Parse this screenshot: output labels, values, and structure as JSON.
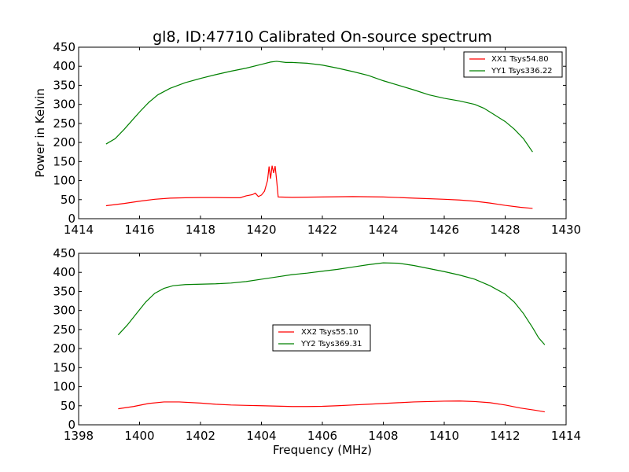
{
  "chart_data": [
    {
      "type": "line",
      "title": "gl8, ID:47710 Calibrated On-source spectrum",
      "xlabel": "",
      "ylabel": "Power in Kelvin",
      "xlim": [
        1414,
        1430
      ],
      "ylim": [
        0,
        450
      ],
      "xticks": [
        "1414",
        "1416",
        "1418",
        "1420",
        "1422",
        "1424",
        "1426",
        "1428",
        "1430"
      ],
      "yticks": [
        "0",
        "50",
        "100",
        "150",
        "200",
        "250",
        "300",
        "350",
        "400",
        "450"
      ],
      "legend_position": "top-right",
      "series": [
        {
          "name": "XX1 Tsys54.80",
          "color": "#ff0000",
          "points": [
            [
              1414.9,
              34
            ],
            [
              1415.5,
              40
            ],
            [
              1416,
              46
            ],
            [
              1416.5,
              51
            ],
            [
              1417,
              54
            ],
            [
              1417.5,
              55
            ],
            [
              1418,
              55.5
            ],
            [
              1418.5,
              55.5
            ],
            [
              1419,
              55
            ],
            [
              1419.3,
              55
            ],
            [
              1419.5,
              60
            ],
            [
              1419.7,
              63
            ],
            [
              1419.8,
              67
            ],
            [
              1419.9,
              58
            ],
            [
              1420,
              62
            ],
            [
              1420.1,
              72
            ],
            [
              1420.2,
              100
            ],
            [
              1420.25,
              137
            ],
            [
              1420.3,
              105
            ],
            [
              1420.35,
              139
            ],
            [
              1420.4,
              120
            ],
            [
              1420.45,
              138
            ],
            [
              1420.5,
              100
            ],
            [
              1420.55,
              57
            ],
            [
              1421,
              56
            ],
            [
              1422,
              57
            ],
            [
              1423,
              58
            ],
            [
              1424,
              57
            ],
            [
              1425,
              54
            ],
            [
              1426,
              51
            ],
            [
              1426.5,
              49
            ],
            [
              1427,
              46
            ],
            [
              1427.5,
              41
            ],
            [
              1428,
              35
            ],
            [
              1428.5,
              30
            ],
            [
              1428.9,
              27
            ]
          ]
        },
        {
          "name": "YY1 Tsys336.22",
          "color": "#008000",
          "points": [
            [
              1414.9,
              196
            ],
            [
              1415.2,
              210
            ],
            [
              1415.5,
              235
            ],
            [
              1415.8,
              262
            ],
            [
              1416,
              280
            ],
            [
              1416.3,
              305
            ],
            [
              1416.6,
              325
            ],
            [
              1417,
              342
            ],
            [
              1417.5,
              357
            ],
            [
              1418,
              368
            ],
            [
              1418.5,
              378
            ],
            [
              1419,
              387
            ],
            [
              1419.5,
              395
            ],
            [
              1420,
              405
            ],
            [
              1420.3,
              411
            ],
            [
              1420.5,
              413
            ],
            [
              1420.8,
              410
            ],
            [
              1421,
              410
            ],
            [
              1421.5,
              408
            ],
            [
              1422,
              403
            ],
            [
              1422.5,
              395
            ],
            [
              1423,
              386
            ],
            [
              1423.5,
              376
            ],
            [
              1424,
              362
            ],
            [
              1424.5,
              350
            ],
            [
              1425,
              338
            ],
            [
              1425.5,
              325
            ],
            [
              1426,
              316
            ],
            [
              1426.5,
              309
            ],
            [
              1427,
              300
            ],
            [
              1427.3,
              290
            ],
            [
              1427.6,
              275
            ],
            [
              1428,
              255
            ],
            [
              1428.3,
              235
            ],
            [
              1428.6,
              210
            ],
            [
              1428.9,
              175
            ]
          ]
        }
      ]
    },
    {
      "type": "line",
      "title": "",
      "xlabel": "Frequency (MHz)",
      "ylabel": "",
      "xlim": [
        1398,
        1414
      ],
      "ylim": [
        0,
        450
      ],
      "xticks": [
        "1398",
        "1400",
        "1402",
        "1404",
        "1406",
        "1408",
        "1410",
        "1412",
        "1414"
      ],
      "yticks": [
        "0",
        "50",
        "100",
        "150",
        "200",
        "250",
        "300",
        "350",
        "400",
        "450"
      ],
      "legend_position": "center",
      "series": [
        {
          "name": "XX2 Tsys55.10",
          "color": "#ff0000",
          "points": [
            [
              1399.3,
              42
            ],
            [
              1399.8,
              48
            ],
            [
              1400.3,
              56
            ],
            [
              1400.8,
              60
            ],
            [
              1401.3,
              60
            ],
            [
              1402,
              57
            ],
            [
              1402.5,
              54
            ],
            [
              1403,
              52
            ],
            [
              1403.5,
              51
            ],
            [
              1404,
              50
            ],
            [
              1404.5,
              49
            ],
            [
              1405,
              48
            ],
            [
              1405.5,
              48
            ],
            [
              1406,
              48.5
            ],
            [
              1406.5,
              50
            ],
            [
              1407,
              52
            ],
            [
              1407.5,
              54
            ],
            [
              1408,
              56
            ],
            [
              1408.5,
              58
            ],
            [
              1409,
              60
            ],
            [
              1409.5,
              61
            ],
            [
              1410,
              62
            ],
            [
              1410.5,
              62.5
            ],
            [
              1411,
              61
            ],
            [
              1411.5,
              58
            ],
            [
              1412,
              52
            ],
            [
              1412.5,
              44
            ],
            [
              1413,
              38
            ],
            [
              1413.3,
              34
            ]
          ]
        },
        {
          "name": "YY2 Tsys369.31",
          "color": "#008000",
          "points": [
            [
              1399.3,
              236
            ],
            [
              1399.6,
              262
            ],
            [
              1399.9,
              292
            ],
            [
              1400.2,
              322
            ],
            [
              1400.5,
              345
            ],
            [
              1400.8,
              358
            ],
            [
              1401.1,
              365
            ],
            [
              1401.5,
              368
            ],
            [
              1402,
              369
            ],
            [
              1402.5,
              370
            ],
            [
              1403,
              372
            ],
            [
              1403.5,
              376
            ],
            [
              1404,
              382
            ],
            [
              1404.5,
              388
            ],
            [
              1405,
              394
            ],
            [
              1405.5,
              398
            ],
            [
              1406,
              403
            ],
            [
              1406.5,
              408
            ],
            [
              1407,
              414
            ],
            [
              1407.5,
              420
            ],
            [
              1408,
              425
            ],
            [
              1408.5,
              424
            ],
            [
              1409,
              418
            ],
            [
              1409.5,
              410
            ],
            [
              1410,
              402
            ],
            [
              1410.5,
              393
            ],
            [
              1411,
              382
            ],
            [
              1411.5,
              365
            ],
            [
              1412,
              343
            ],
            [
              1412.3,
              322
            ],
            [
              1412.6,
              292
            ],
            [
              1412.9,
              255
            ],
            [
              1413.1,
              228
            ],
            [
              1413.3,
              210
            ]
          ]
        }
      ]
    }
  ]
}
